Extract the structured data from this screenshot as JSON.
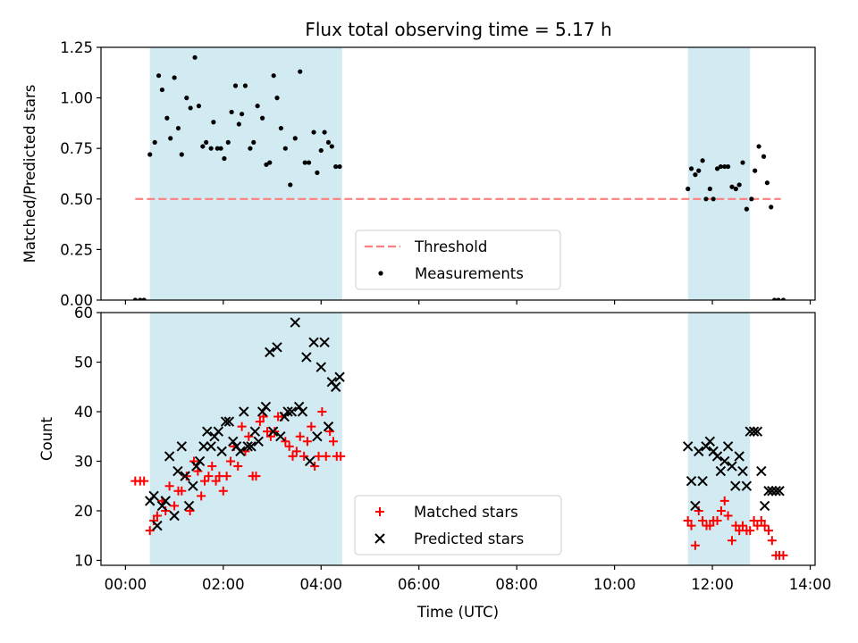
{
  "chart_data": [
    {
      "type": "scatter",
      "title": "Flux total observing time = 5.17 h",
      "xlabel": "",
      "ylabel": "Matched/Predicted stars",
      "xlim": [
        -0.5,
        14.1
      ],
      "ylim": [
        0,
        1.25
      ],
      "yticks": [
        0,
        0.25,
        0.5,
        0.75,
        1.0,
        1.25
      ],
      "ytick_labels": [
        "0.00",
        "0.25",
        "0.50",
        "0.75",
        "1.00",
        "1.25"
      ],
      "grid": false,
      "legend": "bottom-center",
      "shaded_intervals": [
        [
          0.5,
          4.43
        ],
        [
          11.5,
          12.77
        ]
      ],
      "shade_color": "#add8e6",
      "threshold": {
        "name": "Threshold",
        "value": 0.5,
        "x_range": [
          0.2,
          13.4
        ],
        "color": "#ff7f7f"
      },
      "series": [
        {
          "name": "Measurements",
          "color": "#000000",
          "marker": "dot",
          "x": [
            0.2,
            0.3,
            0.38,
            0.5,
            0.6,
            0.68,
            0.75,
            0.85,
            0.92,
            1.0,
            1.08,
            1.15,
            1.25,
            1.33,
            1.42,
            1.5,
            1.58,
            1.65,
            1.75,
            1.8,
            1.88,
            1.95,
            2.02,
            2.1,
            2.17,
            2.25,
            2.32,
            2.38,
            2.45,
            2.55,
            2.62,
            2.7,
            2.8,
            2.88,
            2.95,
            3.03,
            3.1,
            3.18,
            3.27,
            3.37,
            3.47,
            3.57,
            3.67,
            3.75,
            3.85,
            3.92,
            4.0,
            4.07,
            4.15,
            4.22,
            4.3,
            4.38,
            11.5,
            11.57,
            11.65,
            11.72,
            11.8,
            11.87,
            11.95,
            12.02,
            12.1,
            12.17,
            12.25,
            12.32,
            12.4,
            12.48,
            12.55,
            12.62,
            12.7,
            12.8,
            12.87,
            12.95,
            13.05,
            13.12,
            13.2,
            13.27,
            13.35,
            13.45
          ],
          "y": [
            0.0,
            0.0,
            0.0,
            0.72,
            0.78,
            1.11,
            1.04,
            0.9,
            0.8,
            1.1,
            0.85,
            0.72,
            1.0,
            0.95,
            1.2,
            0.96,
            0.76,
            0.78,
            0.75,
            0.88,
            0.75,
            0.75,
            0.7,
            0.78,
            0.93,
            1.06,
            0.87,
            0.92,
            1.06,
            0.75,
            0.78,
            0.96,
            0.9,
            0.67,
            0.68,
            1.11,
            1.0,
            0.85,
            0.75,
            0.57,
            0.8,
            1.13,
            0.68,
            0.68,
            0.83,
            0.63,
            0.74,
            0.83,
            0.78,
            0.76,
            0.66,
            0.66,
            0.55,
            0.65,
            0.62,
            0.64,
            0.69,
            0.5,
            0.55,
            0.5,
            0.65,
            0.66,
            0.66,
            0.66,
            0.56,
            0.55,
            0.57,
            0.68,
            0.45,
            0.5,
            0.64,
            0.76,
            0.71,
            0.58,
            0.46,
            0.0,
            0.0,
            0.0
          ]
        }
      ]
    },
    {
      "type": "scatter",
      "title": "",
      "xlabel": "Time (UTC)",
      "ylabel": "Count",
      "xlim": [
        -0.5,
        14.1
      ],
      "ylim": [
        9,
        60
      ],
      "xticks": [
        0,
        2,
        4,
        6,
        8,
        10,
        12,
        14
      ],
      "xtick_labels": [
        "00:00",
        "02:00",
        "04:00",
        "06:00",
        "08:00",
        "10:00",
        "12:00",
        "14:00"
      ],
      "yticks": [
        10,
        20,
        30,
        40,
        50,
        60
      ],
      "ytick_labels": [
        "10",
        "20",
        "30",
        "40",
        "50",
        "60"
      ],
      "grid": false,
      "legend": "bottom-center",
      "shaded_intervals": [
        [
          0.5,
          4.43
        ],
        [
          11.5,
          12.77
        ]
      ],
      "shade_color": "#add8e6",
      "series": [
        {
          "name": "Matched stars",
          "color": "#ff0000",
          "marker": "plus",
          "x": [
            0.2,
            0.3,
            0.38,
            0.5,
            0.58,
            0.65,
            0.75,
            0.82,
            0.9,
            1.0,
            1.08,
            1.15,
            1.25,
            1.32,
            1.4,
            1.48,
            1.55,
            1.62,
            1.7,
            1.77,
            1.85,
            1.92,
            2.0,
            2.07,
            2.15,
            2.22,
            2.3,
            2.38,
            2.45,
            2.52,
            2.6,
            2.67,
            2.75,
            2.82,
            2.9,
            2.97,
            3.05,
            3.12,
            3.2,
            3.27,
            3.35,
            3.42,
            3.5,
            3.57,
            3.65,
            3.72,
            3.8,
            3.87,
            3.95,
            4.02,
            4.1,
            4.18,
            4.25,
            4.32,
            4.4,
            11.5,
            11.57,
            11.65,
            11.72,
            11.8,
            11.88,
            11.95,
            12.02,
            12.1,
            12.18,
            12.25,
            12.32,
            12.4,
            12.48,
            12.55,
            12.62,
            12.7,
            12.77,
            12.85,
            12.92,
            13.0,
            13.07,
            13.15,
            13.22,
            13.3,
            13.37,
            13.45
          ],
          "y": [
            26,
            26,
            26,
            16,
            18,
            19,
            22,
            20,
            25,
            21,
            24,
            24,
            27,
            20,
            30,
            28,
            23,
            26,
            27,
            29,
            26,
            27,
            24,
            27,
            30,
            33,
            29,
            37,
            32,
            35,
            27,
            27,
            38,
            39,
            36,
            35,
            36,
            39,
            39,
            34,
            33,
            31,
            32,
            35,
            31,
            34,
            37,
            29,
            31,
            40,
            31,
            36,
            34,
            31,
            31,
            18,
            17,
            13,
            20,
            18,
            17,
            17,
            18,
            18,
            20,
            22,
            19,
            14,
            17,
            16,
            17,
            16,
            16,
            18,
            17,
            18,
            17,
            16,
            14,
            11,
            11,
            11
          ]
        },
        {
          "name": "Predicted stars",
          "color": "#000000",
          "marker": "x",
          "x": [
            0.5,
            0.58,
            0.65,
            0.75,
            0.82,
            0.9,
            1.0,
            1.07,
            1.15,
            1.22,
            1.3,
            1.38,
            1.45,
            1.52,
            1.6,
            1.67,
            1.75,
            1.82,
            1.9,
            1.97,
            2.05,
            2.12,
            2.2,
            2.27,
            2.35,
            2.42,
            2.5,
            2.57,
            2.65,
            2.72,
            2.8,
            2.87,
            2.95,
            3.02,
            3.1,
            3.17,
            3.25,
            3.32,
            3.4,
            3.47,
            3.55,
            3.62,
            3.7,
            3.77,
            3.85,
            3.92,
            4.0,
            4.07,
            4.15,
            4.22,
            4.3,
            4.38,
            11.5,
            11.57,
            11.65,
            11.72,
            11.8,
            11.87,
            11.95,
            12.02,
            12.1,
            12.17,
            12.25,
            12.32,
            12.4,
            12.47,
            12.55,
            12.62,
            12.7,
            12.77,
            12.85,
            12.92,
            13.0,
            13.07,
            13.15,
            13.22,
            13.3,
            13.37
          ],
          "y": [
            22,
            23,
            17,
            21,
            22,
            31,
            19,
            28,
            33,
            27,
            21,
            25,
            29,
            30,
            33,
            36,
            33,
            35,
            36,
            32,
            38,
            38,
            34,
            33,
            32,
            40,
            33,
            33,
            36,
            34,
            40,
            41,
            52,
            36,
            53,
            35,
            39,
            40,
            40,
            58,
            41,
            40,
            51,
            30,
            54,
            35,
            49,
            54,
            37,
            46,
            45,
            47,
            33,
            26,
            21,
            32,
            26,
            33,
            34,
            32,
            31,
            28,
            30,
            33,
            29,
            25,
            31,
            28,
            25,
            36,
            36,
            36,
            28,
            21,
            24,
            24,
            24,
            24
          ]
        }
      ]
    }
  ]
}
